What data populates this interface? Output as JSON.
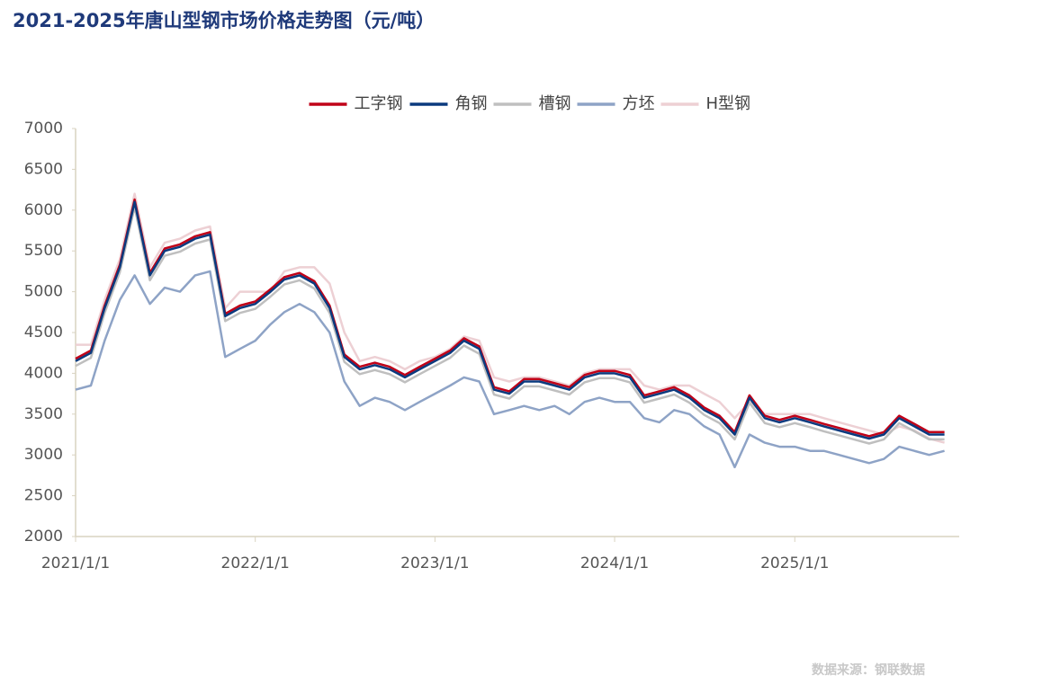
{
  "chart_data": {
    "type": "line",
    "title": "2021-2025年唐山型钢市场价格走势图（元/吨）",
    "source": "数据来源：钢联数据",
    "x": [
      "2021/1/1",
      "2021/2/1",
      "2021/3/1",
      "2021/4/1",
      "2021/5/1",
      "2021/6/1",
      "2021/7/1",
      "2021/8/1",
      "2021/9/1",
      "2021/10/1",
      "2021/11/1",
      "2021/12/1",
      "2022/1/1",
      "2022/2/1",
      "2022/3/1",
      "2022/4/1",
      "2022/5/1",
      "2022/6/1",
      "2022/7/1",
      "2022/8/1",
      "2022/9/1",
      "2022/10/1",
      "2022/11/1",
      "2022/12/1",
      "2023/1/1",
      "2023/2/1",
      "2023/3/1",
      "2023/4/1",
      "2023/5/1",
      "2023/6/1",
      "2023/7/1",
      "2023/8/1",
      "2023/9/1",
      "2023/10/1",
      "2023/11/1",
      "2023/12/1",
      "2024/1/1",
      "2024/2/1",
      "2024/3/1",
      "2024/4/1",
      "2024/5/1",
      "2024/6/1",
      "2024/7/1",
      "2024/8/1",
      "2024/9/1",
      "2024/10/1",
      "2024/11/1",
      "2024/12/1",
      "2025/1/1",
      "2025/2/1",
      "2025/3/1",
      "2025/4/1",
      "2025/5/1",
      "2025/6/1",
      "2025/7/1",
      "2025/8/1",
      "2025/9/1",
      "2025/10/1",
      "2025/11/1"
    ],
    "xlim": [
      "2021/1/1",
      "2025/12/1"
    ],
    "xticks": [
      "2021/1/1",
      "2022/1/1",
      "2023/1/1",
      "2024/1/1",
      "2025/1/1"
    ],
    "ylim": [
      2000,
      7000
    ],
    "yticks": [
      2000,
      2500,
      3000,
      3500,
      4000,
      4500,
      5000,
      5500,
      6000,
      6500,
      7000
    ],
    "legend": "top",
    "series": [
      {
        "name": "工字钢",
        "color": "#c00018",
        "values": [
          4180,
          4280,
          4830,
          5330,
          6130,
          5230,
          5530,
          5580,
          5680,
          5730,
          4730,
          4830,
          4880,
          5030,
          5180,
          5230,
          5130,
          4830,
          4230,
          4080,
          4130,
          4080,
          3980,
          4080,
          4180,
          4280,
          4430,
          4330,
          3830,
          3780,
          3930,
          3930,
          3880,
          3830,
          3980,
          4030,
          4030,
          3980,
          3730,
          3780,
          3830,
          3730,
          3580,
          3480,
          3280,
          3730,
          3480,
          3430,
          3480,
          3430,
          3380,
          3330,
          3280,
          3230,
          3280,
          3480,
          3380,
          3280,
          3280
        ]
      },
      {
        "name": "角钢",
        "color": "#0b3a7e",
        "values": [
          4150,
          4250,
          4800,
          5300,
          6100,
          5200,
          5500,
          5550,
          5650,
          5700,
          4700,
          4800,
          4850,
          5000,
          5150,
          5200,
          5100,
          4800,
          4200,
          4050,
          4100,
          4050,
          3950,
          4050,
          4150,
          4250,
          4400,
          4300,
          3800,
          3750,
          3900,
          3900,
          3850,
          3800,
          3950,
          4000,
          4000,
          3950,
          3700,
          3750,
          3800,
          3700,
          3550,
          3450,
          3250,
          3700,
          3450,
          3400,
          3450,
          3400,
          3350,
          3300,
          3250,
          3200,
          3250,
          3450,
          3350,
          3250,
          3250
        ]
      },
      {
        "name": "槽钢",
        "color": "#bfbfbf",
        "values": [
          4090,
          4190,
          4740,
          5240,
          6040,
          5140,
          5440,
          5490,
          5590,
          5640,
          4640,
          4740,
          4790,
          4940,
          5090,
          5140,
          5040,
          4740,
          4140,
          3990,
          4040,
          3990,
          3890,
          3990,
          4090,
          4190,
          4340,
          4240,
          3740,
          3690,
          3840,
          3840,
          3790,
          3740,
          3890,
          3940,
          3940,
          3890,
          3640,
          3690,
          3740,
          3640,
          3490,
          3390,
          3190,
          3640,
          3390,
          3340,
          3390,
          3340,
          3290,
          3240,
          3190,
          3140,
          3190,
          3390,
          3290,
          3190,
          3190
        ]
      },
      {
        "name": "方坯",
        "color": "#8ea3c6",
        "values": [
          3800,
          3850,
          4400,
          4900,
          5200,
          4850,
          5050,
          5000,
          5200,
          5250,
          4200,
          4300,
          4400,
          4600,
          4750,
          4850,
          4750,
          4500,
          3900,
          3600,
          3700,
          3650,
          3550,
          3650,
          3750,
          3850,
          3950,
          3900,
          3500,
          3550,
          3600,
          3550,
          3600,
          3500,
          3650,
          3700,
          3650,
          3650,
          3450,
          3400,
          3550,
          3500,
          3350,
          3250,
          2850,
          3250,
          3150,
          3100,
          3100,
          3050,
          3050,
          3000,
          2950,
          2900,
          2950,
          3100,
          3050,
          3000,
          3050
        ]
      },
      {
        "name": "H型钢",
        "color": "#edd0d4",
        "values": [
          4350,
          4350,
          4900,
          5400,
          6200,
          5300,
          5600,
          5650,
          5750,
          5800,
          4800,
          5000,
          5000,
          5000,
          5250,
          5300,
          5300,
          5100,
          4500,
          4150,
          4200,
          4150,
          4050,
          4150,
          4200,
          4300,
          4450,
          4400,
          3950,
          3900,
          3950,
          3950,
          3900,
          3850,
          4000,
          4050,
          4050,
          4050,
          3850,
          3800,
          3850,
          3850,
          3750,
          3650,
          3450,
          3650,
          3500,
          3500,
          3500,
          3500,
          3450,
          3400,
          3350,
          3300,
          3250,
          3350,
          3300,
          3200,
          3150
        ]
      }
    ]
  }
}
